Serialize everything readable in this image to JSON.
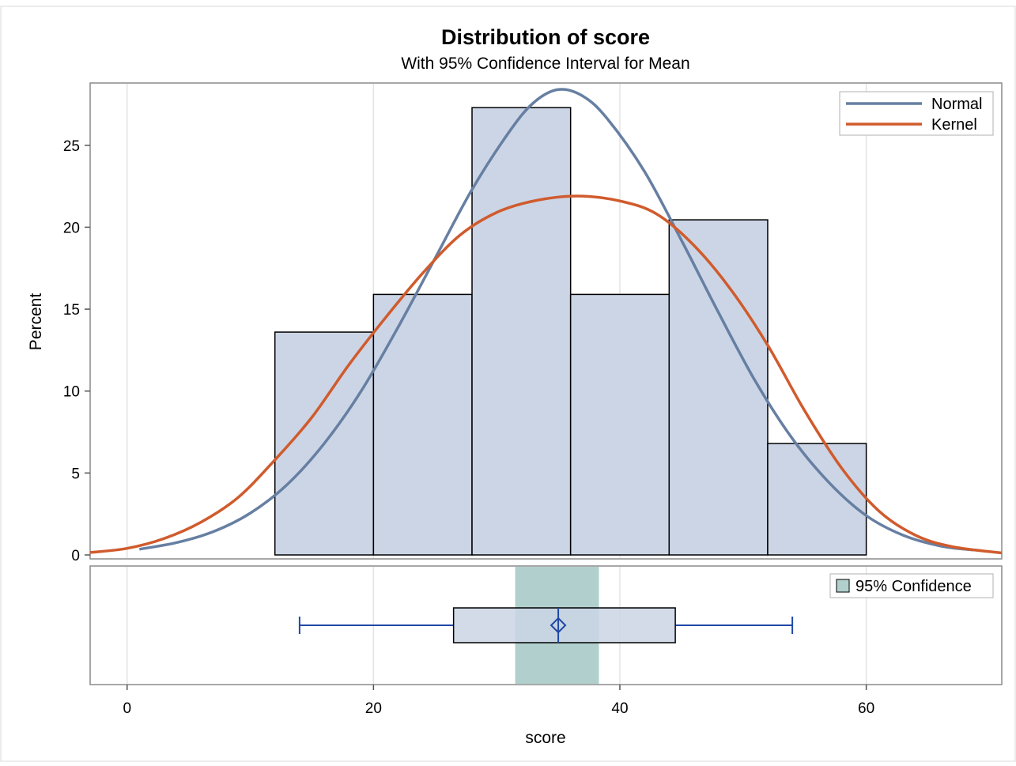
{
  "chart_data": {
    "type": "histogram",
    "title": "Distribution of score",
    "subtitle": "With 95% Confidence Interval for Mean",
    "xlabel": "score",
    "ylabel": "Percent",
    "xlim": [
      -3,
      71
    ],
    "ylim": [
      0,
      28.8
    ],
    "x_ticks": [
      0,
      20,
      40,
      60
    ],
    "y_ticks": [
      0,
      5,
      10,
      15,
      20,
      25
    ],
    "grid": "vertical",
    "bars": [
      {
        "start": 12,
        "end": 20,
        "value": 13.6
      },
      {
        "start": 20,
        "end": 28,
        "value": 15.9
      },
      {
        "start": 28,
        "end": 36,
        "value": 27.3
      },
      {
        "start": 36,
        "end": 44,
        "value": 15.9
      },
      {
        "start": 44,
        "end": 52,
        "value": 20.45
      },
      {
        "start": 52,
        "end": 60,
        "value": 6.8
      }
    ],
    "series": [
      {
        "name": "Normal",
        "color": "#667fa2",
        "x": [
          1,
          4,
          7,
          10,
          13,
          16,
          19,
          22,
          25,
          28,
          31,
          33,
          35,
          37,
          39,
          42,
          45,
          48,
          51,
          54,
          57,
          60,
          63,
          66,
          68.7
        ],
        "y": [
          0.35,
          0.75,
          1.42,
          2.55,
          4.3,
          6.8,
          10.0,
          13.9,
          18.1,
          22.3,
          25.8,
          27.6,
          28.4,
          28.0,
          26.6,
          23.4,
          19.2,
          14.8,
          10.6,
          7.1,
          4.4,
          2.4,
          1.2,
          0.55,
          0.3
        ]
      },
      {
        "name": "Kernel",
        "color": "#d05b2d",
        "x": [
          -3,
          0,
          3,
          6,
          9,
          12,
          15,
          18,
          21,
          24,
          27,
          30,
          33,
          36.5,
          40,
          43,
          46,
          49,
          52,
          55,
          58,
          61,
          64,
          67,
          71
        ],
        "y": [
          0.15,
          0.4,
          1.0,
          2.0,
          3.5,
          5.8,
          8.4,
          11.6,
          14.5,
          17.2,
          19.5,
          20.9,
          21.6,
          21.9,
          21.6,
          20.8,
          18.9,
          16.2,
          12.8,
          8.8,
          5.3,
          2.7,
          1.2,
          0.5,
          0.12
        ]
      }
    ],
    "box": {
      "min": 14,
      "q1": 26.5,
      "mean": 35,
      "median": 35,
      "q3": 44.5,
      "max": 54,
      "ci": [
        31.5,
        38.3
      ],
      "ci_label": "95% Confidence",
      "ci_color": "#b1d0cd",
      "box_color": "#cbd5e5",
      "whisker_color": "#1f48a6"
    },
    "legend_position": "top-right",
    "bar_color": "#cbd5e5"
  }
}
